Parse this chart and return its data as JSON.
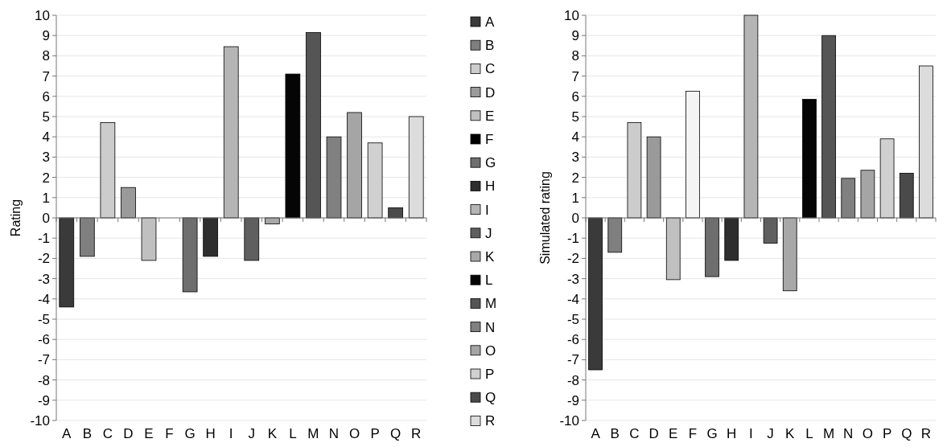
{
  "chart_data": [
    {
      "type": "bar",
      "ylabel": "Rating",
      "categories": [
        "A",
        "B",
        "C",
        "D",
        "E",
        "F",
        "G",
        "H",
        "I",
        "J",
        "K",
        "L",
        "M",
        "N",
        "O",
        "P",
        "Q",
        "R"
      ],
      "series": [
        {
          "name": "A",
          "color": "#3a3a3a",
          "values": [
            -4.4,
            null,
            null,
            null,
            null,
            null,
            null,
            null,
            null,
            null,
            null,
            null,
            null,
            null,
            null,
            null,
            null,
            null
          ]
        },
        {
          "name": "B",
          "color": "#7f7f7f",
          "values": [
            null,
            -1.9,
            null,
            null,
            null,
            null,
            null,
            null,
            null,
            null,
            null,
            null,
            null,
            null,
            null,
            null,
            null,
            null
          ]
        },
        {
          "name": "C",
          "color": "#cccccc",
          "values": [
            null,
            null,
            4.7,
            null,
            null,
            null,
            null,
            null,
            null,
            null,
            null,
            null,
            null,
            null,
            null,
            null,
            null,
            null
          ]
        },
        {
          "name": "D",
          "color": "#9a9a9a",
          "values": [
            null,
            null,
            null,
            1.5,
            null,
            null,
            null,
            null,
            null,
            null,
            null,
            null,
            null,
            null,
            null,
            null,
            null,
            null
          ]
        },
        {
          "name": "E",
          "color": "#c0c0c0",
          "values": [
            null,
            null,
            null,
            null,
            -2.1,
            null,
            null,
            null,
            null,
            null,
            null,
            null,
            null,
            null,
            null,
            null,
            null,
            null
          ]
        },
        {
          "name": "F",
          "color": "#000000",
          "values": [
            null,
            null,
            null,
            null,
            null,
            null,
            null,
            null,
            null,
            null,
            null,
            null,
            null,
            null,
            null,
            null,
            null,
            null
          ]
        },
        {
          "name": "G",
          "color": "#6e6e6e",
          "values": [
            null,
            null,
            null,
            null,
            null,
            null,
            -3.65,
            null,
            null,
            null,
            null,
            null,
            null,
            null,
            null,
            null,
            null,
            null
          ]
        },
        {
          "name": "H",
          "color": "#2e2e2e",
          "values": [
            null,
            null,
            null,
            null,
            null,
            null,
            null,
            -1.9,
            null,
            null,
            null,
            null,
            null,
            null,
            null,
            null,
            null,
            null
          ]
        },
        {
          "name": "I",
          "color": "#b5b5b5",
          "values": [
            null,
            null,
            null,
            null,
            null,
            null,
            null,
            null,
            8.45,
            null,
            null,
            null,
            null,
            null,
            null,
            null,
            null,
            null
          ]
        },
        {
          "name": "J",
          "color": "#5f5f5f",
          "values": [
            null,
            null,
            null,
            null,
            null,
            null,
            null,
            null,
            null,
            -2.1,
            null,
            null,
            null,
            null,
            null,
            null,
            null,
            null
          ]
        },
        {
          "name": "K",
          "color": "#a8a8a8",
          "values": [
            null,
            null,
            null,
            null,
            null,
            null,
            null,
            null,
            null,
            null,
            -0.3,
            null,
            null,
            null,
            null,
            null,
            null,
            null
          ]
        },
        {
          "name": "L",
          "color": "#050505",
          "values": [
            null,
            null,
            null,
            null,
            null,
            null,
            null,
            null,
            null,
            null,
            null,
            7.1,
            null,
            null,
            null,
            null,
            null,
            null
          ]
        },
        {
          "name": "M",
          "color": "#555555",
          "values": [
            null,
            null,
            null,
            null,
            null,
            null,
            null,
            null,
            null,
            null,
            null,
            null,
            9.15,
            null,
            null,
            null,
            null,
            null
          ]
        },
        {
          "name": "N",
          "color": "#808080",
          "values": [
            null,
            null,
            null,
            null,
            null,
            null,
            null,
            null,
            null,
            null,
            null,
            null,
            null,
            4.0,
            null,
            null,
            null,
            null
          ]
        },
        {
          "name": "O",
          "color": "#a5a5a5",
          "values": [
            null,
            null,
            null,
            null,
            null,
            null,
            null,
            null,
            null,
            null,
            null,
            null,
            null,
            null,
            5.2,
            null,
            null,
            null
          ]
        },
        {
          "name": "P",
          "color": "#d0d0d0",
          "values": [
            null,
            null,
            null,
            null,
            null,
            null,
            null,
            null,
            null,
            null,
            null,
            null,
            null,
            null,
            null,
            3.7,
            null,
            null
          ]
        },
        {
          "name": "Q",
          "color": "#4a4a4a",
          "values": [
            null,
            null,
            null,
            null,
            null,
            null,
            null,
            null,
            null,
            null,
            null,
            null,
            null,
            null,
            null,
            null,
            0.5,
            null
          ]
        },
        {
          "name": "R",
          "color": "#dcdcdc",
          "values": [
            null,
            null,
            null,
            null,
            null,
            null,
            null,
            null,
            null,
            null,
            null,
            null,
            null,
            null,
            null,
            null,
            null,
            5.0
          ]
        }
      ],
      "ylim": [
        -10,
        10
      ],
      "yticks": [
        -10,
        -9,
        -8,
        -7,
        -6,
        -5,
        -4,
        -3,
        -2,
        -1,
        0,
        1,
        2,
        3,
        4,
        5,
        6,
        7,
        8,
        9,
        10
      ],
      "grid": "y",
      "legend": "right"
    },
    {
      "type": "bar",
      "ylabel": "Simulated rating",
      "categories": [
        "A",
        "B",
        "C",
        "D",
        "E",
        "F",
        "G",
        "H",
        "I",
        "J",
        "K",
        "L",
        "M",
        "N",
        "O",
        "P",
        "Q",
        "R"
      ],
      "values": [
        -7.5,
        -1.7,
        4.7,
        4.0,
        -3.05,
        6.25,
        -2.9,
        -2.1,
        10.0,
        -1.25,
        -3.6,
        5.85,
        9.0,
        1.95,
        2.35,
        3.9,
        2.2,
        7.5
      ],
      "colors": [
        "#3a3a3a",
        "#7f7f7f",
        "#cccccc",
        "#9a9a9a",
        "#c0c0c0",
        "#f4f4f4",
        "#6e6e6e",
        "#2e2e2e",
        "#b5b5b5",
        "#5f5f5f",
        "#a8a8a8",
        "#050505",
        "#555555",
        "#808080",
        "#a5a5a5",
        "#d0d0d0",
        "#4a4a4a",
        "#dcdcdc"
      ],
      "ylim": [
        -10,
        10
      ],
      "yticks": [
        -10,
        -9,
        -8,
        -7,
        -6,
        -5,
        -4,
        -3,
        -2,
        -1,
        0,
        1,
        2,
        3,
        4,
        5,
        6,
        7,
        8,
        9,
        10
      ],
      "grid": "y"
    }
  ]
}
